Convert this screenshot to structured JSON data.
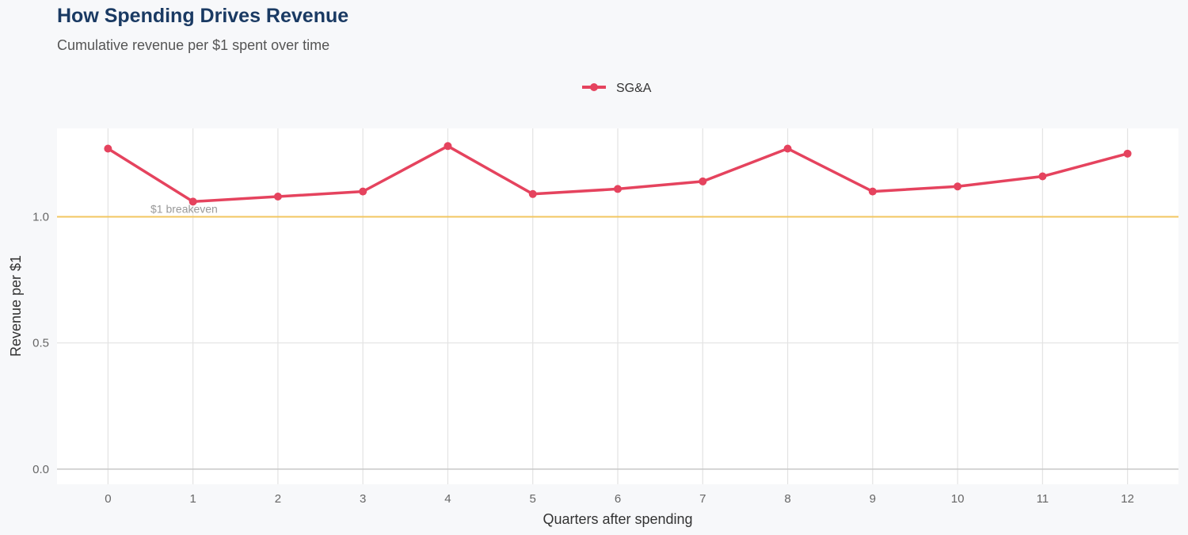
{
  "chart_data": {
    "type": "line",
    "title": "How Spending Drives Revenue",
    "subtitle": "Cumulative revenue per $1 spent over time",
    "xlabel": "Quarters after spending",
    "ylabel": "Revenue per $1",
    "x": [
      0,
      1,
      2,
      3,
      4,
      5,
      6,
      7,
      8,
      9,
      10,
      11,
      12
    ],
    "series": [
      {
        "name": "SG&A",
        "color": "#e5435e",
        "values": [
          1.27,
          1.06,
          1.08,
          1.1,
          1.28,
          1.09,
          1.11,
          1.14,
          1.27,
          1.1,
          1.12,
          1.16,
          1.25
        ]
      }
    ],
    "xlim": [
      -0.6,
      12.6
    ],
    "ylim": [
      -0.06,
      1.35
    ],
    "yticks": [
      0.0,
      0.5,
      1.0
    ],
    "ytick_labels": [
      "0.0",
      "0.5",
      "1.0"
    ],
    "xtick_labels": [
      "0",
      "1",
      "2",
      "3",
      "4",
      "5",
      "6",
      "7",
      "8",
      "9",
      "10",
      "11",
      "12"
    ],
    "reference_line": {
      "y": 1.0,
      "label": "$1 breakeven",
      "color": "#f2c660"
    },
    "grid": true,
    "legend": "top-center"
  }
}
